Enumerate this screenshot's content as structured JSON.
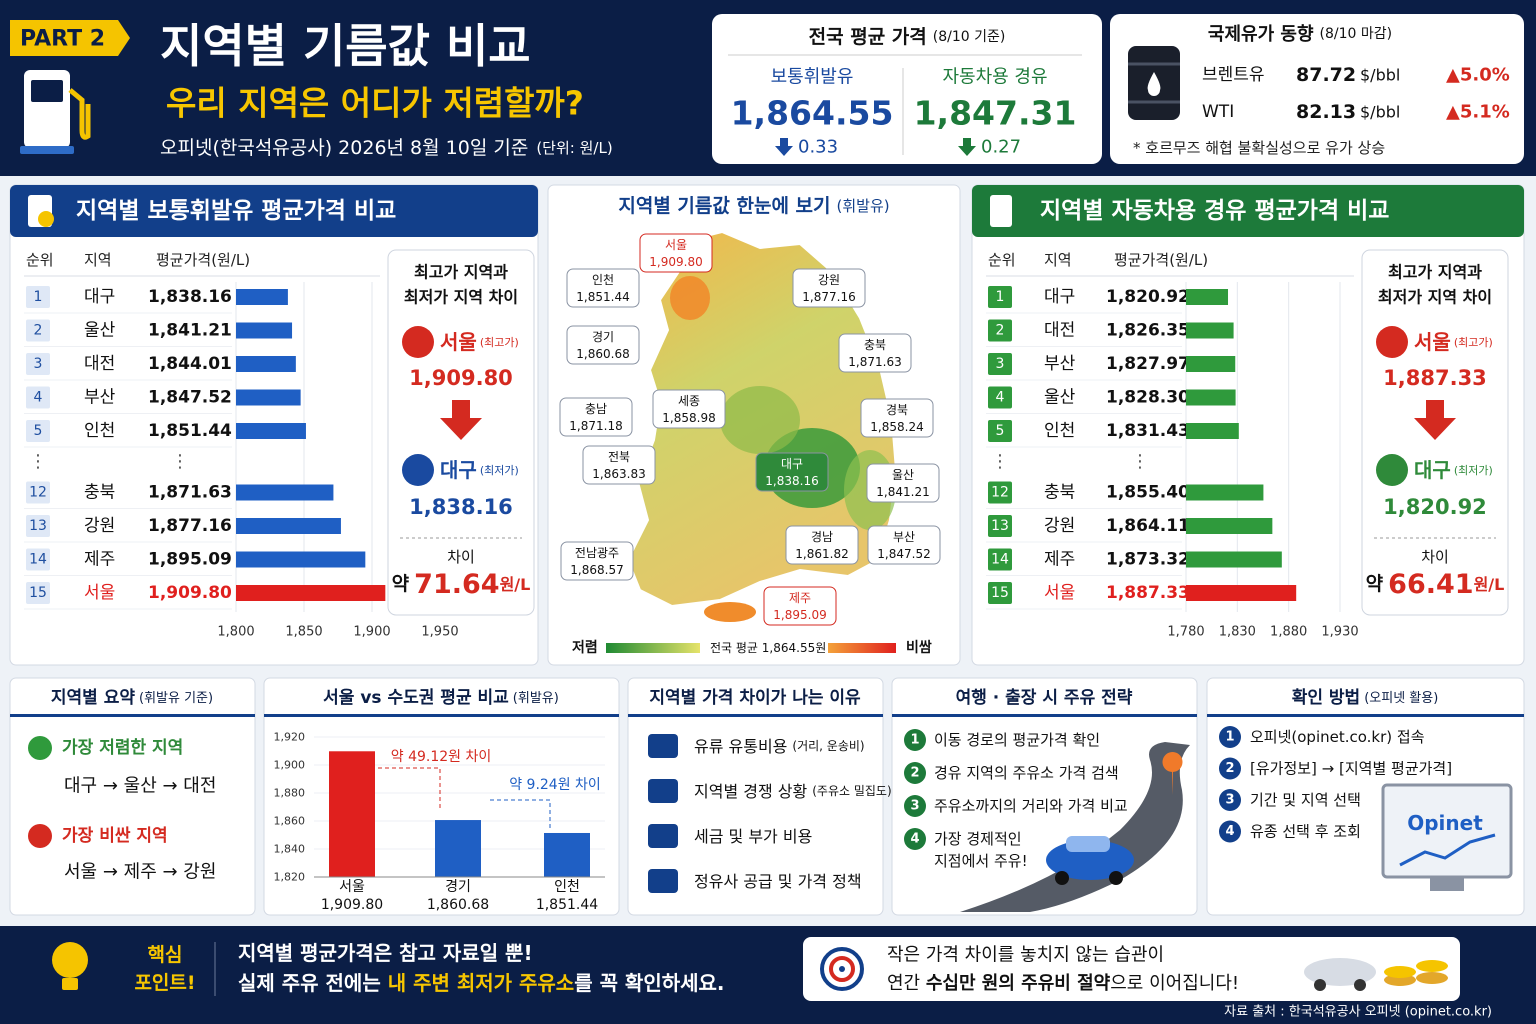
{
  "header": {
    "badge": "PART 2",
    "title": "지역별 기름값 비교",
    "subtitle": "우리 지역은 어디가 저렴할까?",
    "source_line": "오피넷(한국석유공사) 2026년 8월 10일 기준",
    "unit": "(단위: 원/L)"
  },
  "national_avg": {
    "title": "전국 평균 가격",
    "date": "(8/10 기준)",
    "items": [
      {
        "name": "보통휘발유",
        "value": "1,864.55",
        "change": "0.33"
      },
      {
        "name": "자동차용 경유",
        "value": "1,847.31",
        "change": "0.27"
      }
    ]
  },
  "intl_oil": {
    "title": "국제유가 동향",
    "date": "(8/10 마감)",
    "rows": [
      {
        "name": "브렌트유",
        "price": "87.72",
        "unit": "$/bbl",
        "change": "▲5.0%"
      },
      {
        "name": "WTI",
        "price": "82.13",
        "unit": "$/bbl",
        "change": "▲5.1%"
      }
    ],
    "note": "* 호르무즈 해협 불확실성으로 유가 상승"
  },
  "chart_data": [
    {
      "type": "hbar",
      "title": "지역별 보통휘발유 평균가격 비교",
      "columns": [
        "순위",
        "지역",
        "평균가격(원/L)"
      ],
      "ranks": [
        1,
        2,
        3,
        4,
        5,
        12,
        13,
        14,
        15
      ],
      "ellipsis": "⋮",
      "categories": [
        "대구",
        "울산",
        "대전",
        "부산",
        "인천",
        "충북",
        "강원",
        "제주",
        "서울"
      ],
      "values": [
        1838.16,
        1841.21,
        1844.01,
        1847.52,
        1851.44,
        1871.63,
        1877.16,
        1895.09,
        1909.8
      ],
      "value_labels": [
        "1,838.16",
        "1,841.21",
        "1,844.01",
        "1,847.52",
        "1,851.44",
        "1,871.63",
        "1,877.16",
        "1,895.09",
        "1,909.80"
      ],
      "colors": [
        "#1f5fc4",
        "#1f5fc4",
        "#1f5fc4",
        "#1f5fc4",
        "#1f5fc4",
        "#1f5fc4",
        "#1f5fc4",
        "#1f5fc4",
        "#e0201e"
      ],
      "xlim": [
        1800,
        1950
      ],
      "xticks": [
        {
          "value": 1800,
          "label": "1,800"
        },
        {
          "value": 1850,
          "label": "1,850"
        },
        {
          "value": 1900,
          "label": "1,900"
        },
        {
          "value": 1950,
          "label": "1,950"
        }
      ],
      "grid": true,
      "gap_box": {
        "title_lines": [
          "최고가 지역과",
          "최저가 지역 차이"
        ],
        "high_region": "서울",
        "high_tag": "(최고가)",
        "high_value": "1,909.80",
        "low_region": "대구",
        "low_tag": "(최저가)",
        "low_value": "1,838.16",
        "diff_title": "차이",
        "diff_prefix": "약",
        "diff_value": "71.64",
        "diff_unit": "원/L"
      }
    },
    {
      "type": "hbar",
      "title": "지역별 자동차용 경유 평균가격 비교",
      "columns": [
        "순위",
        "지역",
        "평균가격(원/L)"
      ],
      "ranks": [
        1,
        2,
        3,
        4,
        5,
        12,
        13,
        14,
        15
      ],
      "ellipsis": "⋮",
      "categories": [
        "대구",
        "대전",
        "부산",
        "울산",
        "인천",
        "충북",
        "강원",
        "제주",
        "서울"
      ],
      "values": [
        1820.92,
        1826.35,
        1827.97,
        1828.3,
        1831.43,
        1855.4,
        1864.11,
        1873.32,
        1887.33
      ],
      "value_labels": [
        "1,820.92",
        "1,826.35",
        "1,827.97",
        "1,828.30",
        "1,831.43",
        "1,855.40",
        "1,864.11",
        "1,873.32",
        "1,887.33"
      ],
      "colors": [
        "#2f9a3c",
        "#2f9a3c",
        "#2f9a3c",
        "#2f9a3c",
        "#2f9a3c",
        "#2f9a3c",
        "#2f9a3c",
        "#2f9a3c",
        "#e0201e"
      ],
      "xlim": [
        1780,
        1930
      ],
      "xticks": [
        {
          "value": 1780,
          "label": "1,780"
        },
        {
          "value": 1830,
          "label": "1,830"
        },
        {
          "value": 1880,
          "label": "1,880"
        },
        {
          "value": 1930,
          "label": "1,930"
        }
      ],
      "grid": true,
      "gap_box": {
        "title_lines": [
          "최고가 지역과",
          "최저가 지역 차이"
        ],
        "high_region": "서울",
        "high_tag": "(최고가)",
        "high_value": "1,887.33",
        "low_region": "대구",
        "low_tag": "(최저가)",
        "low_value": "1,820.92",
        "diff_title": "차이",
        "diff_prefix": "약",
        "diff_value": "66.41",
        "diff_unit": "원/L"
      }
    },
    {
      "type": "bar",
      "title": "서울 vs 수도권 평균 비교",
      "title_note": "(휘발유)",
      "categories": [
        "서울",
        "경기",
        "인천"
      ],
      "values": [
        1909.8,
        1860.68,
        1851.44
      ],
      "value_labels": [
        "1,909.80",
        "1,860.68",
        "1,851.44"
      ],
      "colors": [
        "#e0201e",
        "#1f5fc4",
        "#1f5fc4"
      ],
      "ylim": [
        1820,
        1920
      ],
      "yticks": [
        {
          "value": 1820,
          "label": "1,820"
        },
        {
          "value": 1840,
          "label": "1,840"
        },
        {
          "value": 1860,
          "label": "1,860"
        },
        {
          "value": 1880,
          "label": "1,880"
        },
        {
          "value": 1900,
          "label": "1,900"
        },
        {
          "value": 1920,
          "label": "1,920"
        }
      ],
      "annotations": [
        "약 49.12원 차이",
        "약 9.24원 차이"
      ]
    }
  ],
  "map": {
    "title": "지역별 기름값 한눈에 보기",
    "title_note": "(휘발유)",
    "regions": [
      {
        "name": "서울",
        "value": "1,909.80"
      },
      {
        "name": "인천",
        "value": "1,851.44"
      },
      {
        "name": "강원",
        "value": "1,877.16"
      },
      {
        "name": "경기",
        "value": "1,860.68"
      },
      {
        "name": "충북",
        "value": "1,871.63"
      },
      {
        "name": "세종",
        "value": "1,858.98"
      },
      {
        "name": "충남",
        "value": "1,871.18"
      },
      {
        "name": "경북",
        "value": "1,858.24"
      },
      {
        "name": "전북",
        "value": "1,863.83"
      },
      {
        "name": "대구",
        "value": "1,838.16"
      },
      {
        "name": "울산",
        "value": "1,841.21"
      },
      {
        "name": "경남",
        "value": "1,861.82"
      },
      {
        "name": "부산",
        "value": "1,847.52"
      },
      {
        "name": "전남광주",
        "value": "1,868.57"
      },
      {
        "name": "제주",
        "value": "1,895.09"
      }
    ],
    "legend": {
      "low": "저렴",
      "mid": "전국 평균 1,864.55원",
      "high": "비쌈"
    }
  },
  "summary": {
    "title": "지역별 요약",
    "note": "(휘발유 기준)",
    "cheap_label": "가장 저렴한 지역",
    "cheap": "대구 → 울산 → 대전",
    "expensive_label": "가장 비싼 지역",
    "expensive": "서울 → 제주 → 강원"
  },
  "reasons": {
    "title": "지역별 가격 차이가 나는 이유",
    "items": [
      {
        "text": "유류 유통비용",
        "note": "(거리, 운송비)"
      },
      {
        "text": "지역별 경쟁 상황",
        "note": "(주유소 밀집도)"
      },
      {
        "text": "세금 및 부가 비용"
      },
      {
        "text": "정유사 공급 및 가격 정책"
      }
    ]
  },
  "travel": {
    "title": "여행 · 출장 시 주유 전략",
    "steps": [
      {
        "no": 1,
        "lines": [
          "이동 경로의 평균가격 확인"
        ]
      },
      {
        "no": 2,
        "lines": [
          "경유 지역의 주유소 가격 검색"
        ]
      },
      {
        "no": 3,
        "lines": [
          "주유소까지의 거리와 가격 비교"
        ]
      },
      {
        "no": 4,
        "lines": [
          "가장 경제적인",
          "지점에서 주유!"
        ]
      }
    ]
  },
  "check": {
    "title": "확인 방법",
    "note": "(오피넷 활용)",
    "steps": [
      {
        "no": 1,
        "text": "오피넷(opinet.co.kr) 접속"
      },
      {
        "no": 2,
        "text": "[유가정보] → [지역별 평균가격]"
      },
      {
        "no": 3,
        "text": "기간 및 지역 선택"
      },
      {
        "no": 4,
        "text": "유종 선택 후 조회"
      }
    ],
    "logo": "Opinet"
  },
  "footer": {
    "key_label_lines": [
      "핵심",
      "포인트!"
    ],
    "key_text_1": "지역별 평균가격은 참고 자료일 뿐!",
    "key_text_2a": "실제 주유 전에는 ",
    "key_highlight": "내 주변 최저가 주유소",
    "key_text_2b": "를 꼭 확인하세요.",
    "tip_1": "작은 가격 차이를 놓치지 않는 습관이",
    "tip_2a": "연간 ",
    "tip_2b": "수십만 원의 주유비 절약",
    "tip_2c": "으로 이어집니다!",
    "source": "자료 출처 : 한국석유공사 오피넷 (opinet.co.kr)"
  }
}
